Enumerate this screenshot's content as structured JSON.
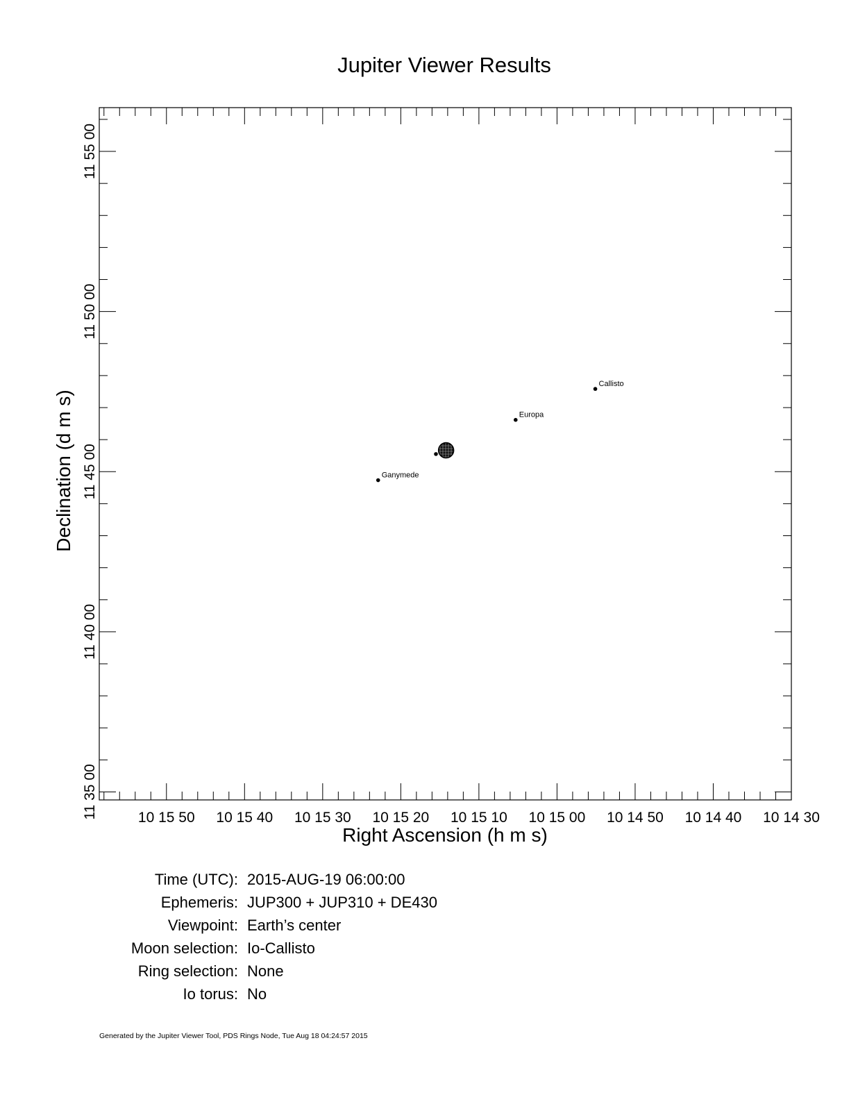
{
  "chart_data": {
    "type": "scatter",
    "title": "Jupiter Viewer Results",
    "xlabel": "Right Ascension (h m s)",
    "ylabel": "Declination (d m s)",
    "x_unit": "seconds of right ascension after 10h 14m 00s",
    "y_unit": "arcseconds of declination after +11° 35′ 00″",
    "xlim": [
      118.6,
      30.0
    ],
    "ylim": [
      -15,
      1282
    ],
    "x_ticks": [
      {
        "value": 110,
        "label": "10 15 50"
      },
      {
        "value": 100,
        "label": "10 15 40"
      },
      {
        "value": 90,
        "label": "10 15 30"
      },
      {
        "value": 80,
        "label": "10 15 20"
      },
      {
        "value": 70,
        "label": "10 15 10"
      },
      {
        "value": 60,
        "label": "10 15 00"
      },
      {
        "value": 50,
        "label": "10 14 50"
      },
      {
        "value": 40,
        "label": "10 14 40"
      },
      {
        "value": 30,
        "label": "10 14 30"
      }
    ],
    "y_ticks": [
      {
        "value": 0,
        "label": "11 35 00"
      },
      {
        "value": 300,
        "label": "11 40 00"
      },
      {
        "value": 600,
        "label": "11 45 00"
      },
      {
        "value": 900,
        "label": "11 50 00"
      },
      {
        "value": 1200,
        "label": "11 55 00"
      }
    ],
    "planet": {
      "name": "Jupiter",
      "x": 74.2,
      "y": 640
    },
    "points": [
      {
        "name": "Io",
        "x": 75.5,
        "y": 633,
        "label": ""
      },
      {
        "name": "Europa",
        "x": 65.3,
        "y": 697,
        "label": "Europa"
      },
      {
        "name": "Callisto",
        "x": 55.1,
        "y": 755,
        "label": "Callisto"
      },
      {
        "name": "Ganymede",
        "x": 82.9,
        "y": 584,
        "label": "Ganymede"
      }
    ],
    "grid": false,
    "legend": "none"
  },
  "info": [
    {
      "label": "Time (UTC):",
      "value": "2015-AUG-19 06:00:00"
    },
    {
      "label": "Ephemeris:",
      "value": "JUP300 + JUP310 + DE430"
    },
    {
      "label": "Viewpoint:",
      "value": "Earth’s center"
    },
    {
      "label": "Moon selection:",
      "value": "Io-Callisto"
    },
    {
      "label": "Ring selection:",
      "value": "None"
    },
    {
      "label": "Io torus:",
      "value": "No"
    }
  ],
  "footer": "Generated by the Jupiter Viewer Tool, PDS Rings Node, Tue Aug 18 04:24:57 2015"
}
